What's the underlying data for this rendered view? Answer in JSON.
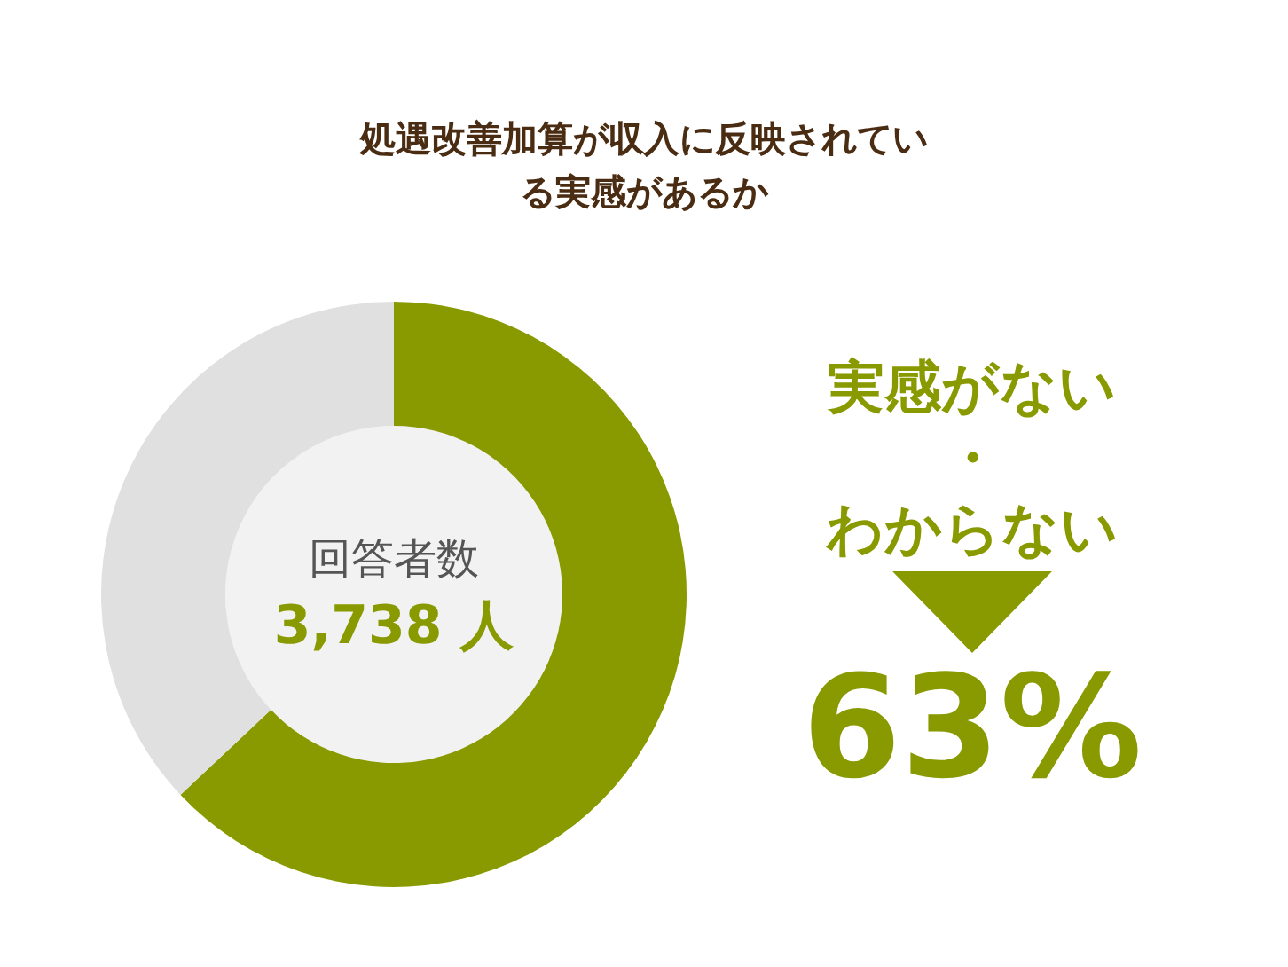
{
  "chart_data": {
    "type": "donut",
    "title": "処遇改善加算が収入に反映されている実感があるか",
    "categories": [
      "実感がない・わからない",
      null
    ],
    "values": [
      63,
      37
    ],
    "colors": [
      "#889a00",
      "#e0e0e0"
    ],
    "value_labels": [
      "63%",
      null
    ],
    "annotations": [
      "回答者数",
      "3,738 人"
    ],
    "legend": false
  }
}
